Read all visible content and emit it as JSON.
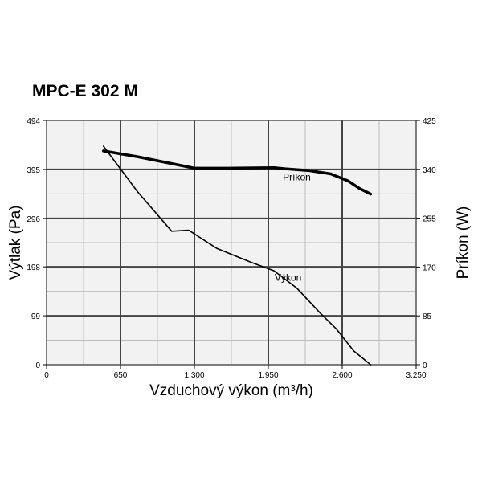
{
  "chart_data": {
    "type": "line",
    "title": "MPC-E 302 M",
    "xlabel": "Vzduchový výkon (m³/h)",
    "ylabel_left": "Výtlak (Pa)",
    "ylabel_right": "Príkon (W)",
    "x_ticks": [
      "0",
      "650",
      "1.300",
      "1.950",
      "2.600",
      "3.250"
    ],
    "x_tick_values": [
      0,
      650,
      1300,
      1950,
      2600,
      3250
    ],
    "xlim": [
      0,
      3250
    ],
    "y_left_ticks": [
      "0",
      "99",
      "198",
      "296",
      "395",
      "494"
    ],
    "y_left_tick_values": [
      0,
      99,
      198,
      296,
      395,
      494
    ],
    "ylim_left": [
      0,
      494
    ],
    "y_right_ticks": [
      "0",
      "85",
      "170",
      "255",
      "340",
      "425"
    ],
    "y_right_tick_values": [
      0,
      85,
      170,
      255,
      340,
      425
    ],
    "ylim_right": [
      0,
      425
    ],
    "grid": true,
    "series": [
      {
        "name": "Výkon",
        "axis": "left",
        "x": [
          500,
          800,
          1100,
          1250,
          1500,
          1800,
          2000,
          2200,
          2400,
          2550,
          2700,
          2850
        ],
        "y": [
          442,
          350,
          270,
          272,
          235,
          207,
          190,
          155,
          106,
          72,
          28,
          0
        ]
      },
      {
        "name": "Príkon",
        "axis": "right",
        "x": [
          500,
          800,
          1100,
          1300,
          1600,
          2000,
          2100,
          2300,
          2500,
          2650,
          2750,
          2850
        ],
        "y": [
          372,
          362,
          350,
          342,
          342,
          343,
          341,
          338,
          332,
          320,
          307,
          297
        ]
      }
    ]
  }
}
